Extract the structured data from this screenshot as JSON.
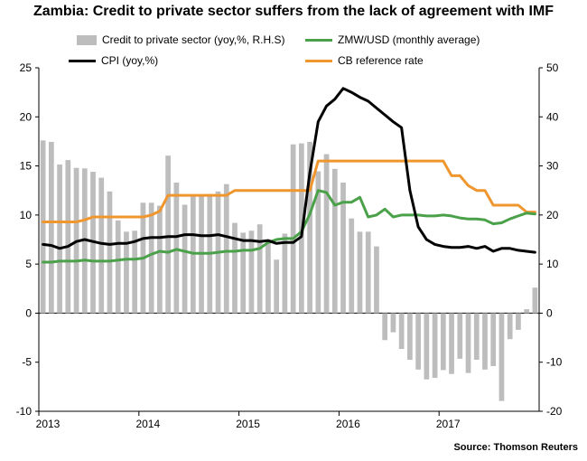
{
  "title": "Zambia: Credit to private sector suffers from the lack of agreement with IMF",
  "source": "Source: Thomson Reuters",
  "colors": {
    "bars": "#bdbdbd",
    "cpi": "#000000",
    "zmw": "#4aa14a",
    "cb": "#f0962f"
  },
  "chart_data": {
    "type": "bar+line",
    "x_labels": [
      "2013",
      "2014",
      "2015",
      "2016",
      "2017"
    ],
    "y_left": {
      "ticks": [
        "-10",
        "-5",
        "0",
        "5",
        "10",
        "15",
        "20",
        "25"
      ],
      "range": [
        -10,
        25
      ]
    },
    "y_right": {
      "ticks": [
        "-20",
        "-10",
        "0",
        "10",
        "20",
        "30",
        "40",
        "50"
      ],
      "range": [
        -20,
        50
      ]
    },
    "legend": {
      "bars": "Credit to private sector (yoy,%, R.H.S)",
      "zmw": "ZMW/USD (monthly average)",
      "cpi": "CPI (yoy,%)",
      "cb": "CB reference rate"
    },
    "months": 60,
    "series": [
      {
        "name": "Credit to private sector (yoy,%, R.H.S)",
        "axis": "right",
        "type": "bar",
        "values": [
          35.2,
          34.9,
          30.3,
          31.2,
          29.6,
          29.5,
          28.8,
          27.6,
          24.8,
          18.9,
          16.6,
          16.8,
          22.5,
          22.5,
          21.9,
          32.1,
          26.6,
          22.1,
          24.2,
          24.2,
          24.3,
          24.8,
          26.3,
          18.4,
          16.4,
          16.8,
          18.1,
          14.9,
          10.9,
          16.2,
          34.4,
          34.6,
          34.9,
          28.9,
          32.4,
          29.4,
          26.6,
          19.3,
          16.6,
          16.6,
          13.6,
          -5.5,
          -3.9,
          -7.3,
          -9.5,
          -11.5,
          -13.5,
          -13.2,
          -11.6,
          -12.4,
          -9.3,
          -12.2,
          -9.5,
          -11.5,
          -10.8,
          -17.9,
          -5.3,
          -3.4,
          0.8,
          5.2
        ]
      },
      {
        "name": "CPI (yoy,%)",
        "axis": "left",
        "type": "line",
        "values": [
          7.0,
          6.9,
          6.6,
          6.8,
          7.3,
          7.5,
          7.3,
          7.1,
          7.0,
          7.1,
          7.1,
          7.3,
          7.6,
          7.7,
          7.7,
          7.8,
          7.8,
          8.0,
          8.0,
          7.9,
          7.9,
          8.0,
          7.8,
          7.6,
          7.4,
          7.4,
          7.3,
          7.4,
          7.1,
          7.2,
          7.2,
          7.8,
          14.3,
          19.5,
          21.1,
          21.8,
          22.9,
          22.5,
          22.0,
          21.6,
          20.9,
          20.2,
          19.5,
          18.9,
          12.5,
          8.8,
          7.5,
          7.0,
          6.8,
          6.7,
          6.7,
          6.8,
          6.6,
          6.8,
          6.3,
          6.6,
          6.6,
          6.4,
          6.3,
          6.2
        ]
      },
      {
        "name": "ZMW/USD (monthly average)",
        "axis": "left",
        "type": "line",
        "values": [
          5.2,
          5.2,
          5.3,
          5.3,
          5.3,
          5.4,
          5.3,
          5.3,
          5.3,
          5.4,
          5.5,
          5.5,
          5.6,
          6.0,
          6.3,
          6.2,
          6.5,
          6.3,
          6.1,
          6.1,
          6.1,
          6.2,
          6.3,
          6.3,
          6.4,
          6.4,
          6.6,
          7.2,
          7.5,
          7.6,
          7.6,
          8.3,
          10.1,
          12.5,
          12.3,
          11.0,
          11.3,
          11.3,
          11.8,
          9.8,
          10.0,
          10.6,
          9.8,
          10.0,
          10.0,
          10.0,
          9.9,
          9.9,
          10.0,
          9.9,
          9.7,
          9.6,
          9.6,
          9.5,
          9.1,
          9.2,
          9.6,
          9.9,
          10.2,
          10.1
        ]
      },
      {
        "name": "CB reference rate",
        "axis": "left",
        "type": "line",
        "values": [
          9.3,
          9.3,
          9.3,
          9.3,
          9.3,
          9.5,
          9.8,
          9.8,
          9.8,
          9.8,
          9.8,
          9.8,
          9.8,
          10.0,
          10.4,
          12.0,
          12.0,
          12.0,
          12.0,
          12.0,
          12.0,
          12.0,
          12.0,
          12.5,
          12.5,
          12.5,
          12.5,
          12.5,
          12.5,
          12.5,
          12.5,
          12.5,
          12.5,
          15.5,
          15.5,
          15.5,
          15.5,
          15.5,
          15.5,
          15.5,
          15.5,
          15.5,
          15.5,
          15.5,
          15.5,
          15.5,
          15.5,
          15.5,
          15.5,
          14.0,
          14.0,
          13.0,
          12.5,
          12.5,
          11.0,
          11.0,
          11.0,
          11.0,
          10.3,
          10.3
        ]
      }
    ]
  }
}
